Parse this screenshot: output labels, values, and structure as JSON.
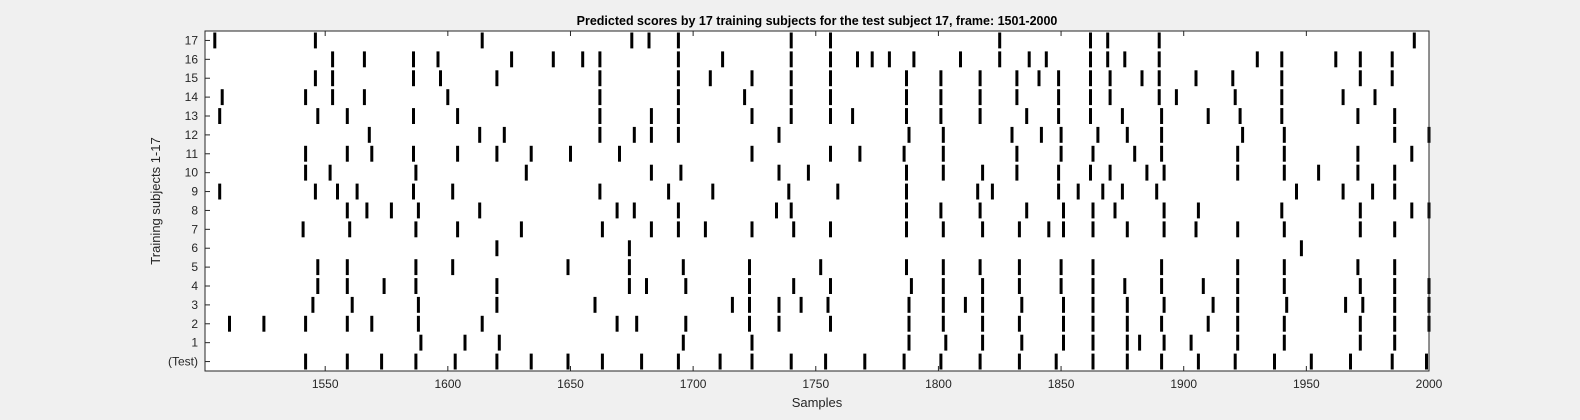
{
  "chart_data": {
    "type": "raster",
    "title": "Predicted scores by 17 training subjects for the test subject 17, frame: 1501-2000",
    "xlabel": "Samples",
    "ylabel": "Training subjects 1-17",
    "xlim": [
      1501,
      2000
    ],
    "x_ticks": [
      1550,
      1600,
      1650,
      1700,
      1750,
      1800,
      1850,
      1900,
      1950,
      2000
    ],
    "y_tick_labels": [
      "17",
      "16",
      "15",
      "14",
      "13",
      "12",
      "11",
      "10",
      "9",
      "8",
      "7",
      "6",
      "5",
      "4",
      "3",
      "2",
      "1",
      "(Test)"
    ],
    "grid": false,
    "rows": [
      {
        "label": "17",
        "events": [
          1505,
          1546,
          1614,
          1675,
          1682,
          1694,
          1740,
          1756,
          1825,
          1862,
          1869,
          1890,
          1994
        ]
      },
      {
        "label": "16",
        "events": [
          1553,
          1566,
          1586,
          1596,
          1626,
          1643,
          1655,
          1662,
          1694,
          1712,
          1740,
          1756,
          1767,
          1773,
          1780,
          1790,
          1809,
          1825,
          1837,
          1844,
          1862,
          1869,
          1876,
          1890,
          1930,
          1940,
          1962,
          1972,
          1985
        ]
      },
      {
        "label": "15",
        "events": [
          1546,
          1553,
          1586,
          1597,
          1620,
          1662,
          1694,
          1707,
          1724,
          1740,
          1756,
          1787,
          1801,
          1817,
          1832,
          1841,
          1849,
          1862,
          1870,
          1883,
          1890,
          1905,
          1920,
          1940,
          1972,
          1985
        ]
      },
      {
        "label": "14",
        "events": [
          1508,
          1542,
          1553,
          1566,
          1600,
          1662,
          1694,
          1721,
          1740,
          1756,
          1787,
          1801,
          1817,
          1832,
          1849,
          1862,
          1870,
          1890,
          1897,
          1921,
          1940,
          1965,
          1978
        ]
      },
      {
        "label": "13",
        "events": [
          1507,
          1547,
          1559,
          1586,
          1604,
          1662,
          1683,
          1694,
          1724,
          1740,
          1756,
          1765,
          1787,
          1801,
          1817,
          1836,
          1849,
          1862,
          1875,
          1891,
          1910,
          1923,
          1940,
          1971,
          1986
        ]
      },
      {
        "label": "12",
        "events": [
          1568,
          1613,
          1623,
          1662,
          1676,
          1683,
          1694,
          1735,
          1788,
          1802,
          1830,
          1842,
          1850,
          1865,
          1877,
          1891,
          1924,
          1941,
          1986,
          2000
        ]
      },
      {
        "label": "11",
        "events": [
          1542,
          1559,
          1569,
          1586,
          1604,
          1620,
          1634,
          1650,
          1670,
          1724,
          1756,
          1768,
          1786,
          1802,
          1832,
          1850,
          1863,
          1880,
          1891,
          1922,
          1941,
          1971,
          1993
        ]
      },
      {
        "label": "10",
        "events": [
          1542,
          1552,
          1587,
          1632,
          1683,
          1695,
          1735,
          1747,
          1787,
          1802,
          1818,
          1832,
          1849,
          1862,
          1870,
          1885,
          1892,
          1922,
          1941,
          1955,
          1971,
          1986
        ]
      },
      {
        "label": "9",
        "events": [
          1507,
          1546,
          1555,
          1563,
          1586,
          1602,
          1662,
          1690,
          1708,
          1739,
          1759,
          1787,
          1816,
          1822,
          1849,
          1857,
          1867,
          1875,
          1889,
          1946,
          1965,
          1977,
          1986
        ]
      },
      {
        "label": "8",
        "events": [
          1559,
          1567,
          1577,
          1588,
          1613,
          1669,
          1676,
          1694,
          1734,
          1740,
          1787,
          1801,
          1817,
          1836,
          1851,
          1863,
          1872,
          1892,
          1906,
          1940,
          1972,
          1993,
          2000
        ]
      },
      {
        "label": "7",
        "events": [
          1541,
          1560,
          1587,
          1604,
          1630,
          1663,
          1683,
          1694,
          1705,
          1724,
          1741,
          1756,
          1787,
          1802,
          1818,
          1833,
          1845,
          1851,
          1863,
          1877,
          1892,
          1905,
          1922,
          1941,
          1972,
          1986
        ]
      },
      {
        "label": "6",
        "events": [
          1620,
          1674,
          1948
        ]
      },
      {
        "label": "5",
        "events": [
          1547,
          1559,
          1587,
          1602,
          1649,
          1674,
          1696,
          1723,
          1752,
          1787,
          1802,
          1817,
          1833,
          1850,
          1863,
          1891,
          1922,
          1941,
          1971,
          1986
        ]
      },
      {
        "label": "4",
        "events": [
          1547,
          1559,
          1574,
          1587,
          1620,
          1674,
          1681,
          1697,
          1723,
          1741,
          1756,
          1789,
          1802,
          1818,
          1833,
          1850,
          1863,
          1876,
          1891,
          1908,
          1922,
          1941,
          1972,
          1986,
          2000
        ]
      },
      {
        "label": "3",
        "events": [
          1545,
          1561,
          1588,
          1620,
          1660,
          1716,
          1723,
          1735,
          1744,
          1755,
          1788,
          1802,
          1811,
          1818,
          1834,
          1851,
          1863,
          1877,
          1892,
          1912,
          1922,
          1942,
          1966,
          1973,
          1986,
          2000
        ]
      },
      {
        "label": "2",
        "events": [
          1511,
          1525,
          1542,
          1559,
          1569,
          1588,
          1614,
          1669,
          1677,
          1697,
          1723,
          1735,
          1756,
          1788,
          1802,
          1818,
          1833,
          1851,
          1863,
          1877,
          1891,
          1910,
          1922,
          1941,
          1972,
          1986,
          2000
        ]
      },
      {
        "label": "1",
        "events": [
          1589,
          1607,
          1621,
          1696,
          1724,
          1788,
          1803,
          1818,
          1834,
          1851,
          1863,
          1877,
          1882,
          1892,
          1903,
          1922,
          1941,
          1972,
          1986
        ]
      },
      {
        "label": "(Test)",
        "events": [
          1542,
          1559,
          1573,
          1587,
          1603,
          1620,
          1634,
          1649,
          1663,
          1679,
          1694,
          1711,
          1724,
          1740,
          1754,
          1770,
          1786,
          1801,
          1817,
          1833,
          1848,
          1863,
          1877,
          1891,
          1906,
          1921,
          1937,
          1952,
          1968,
          1985,
          1999
        ]
      }
    ]
  }
}
